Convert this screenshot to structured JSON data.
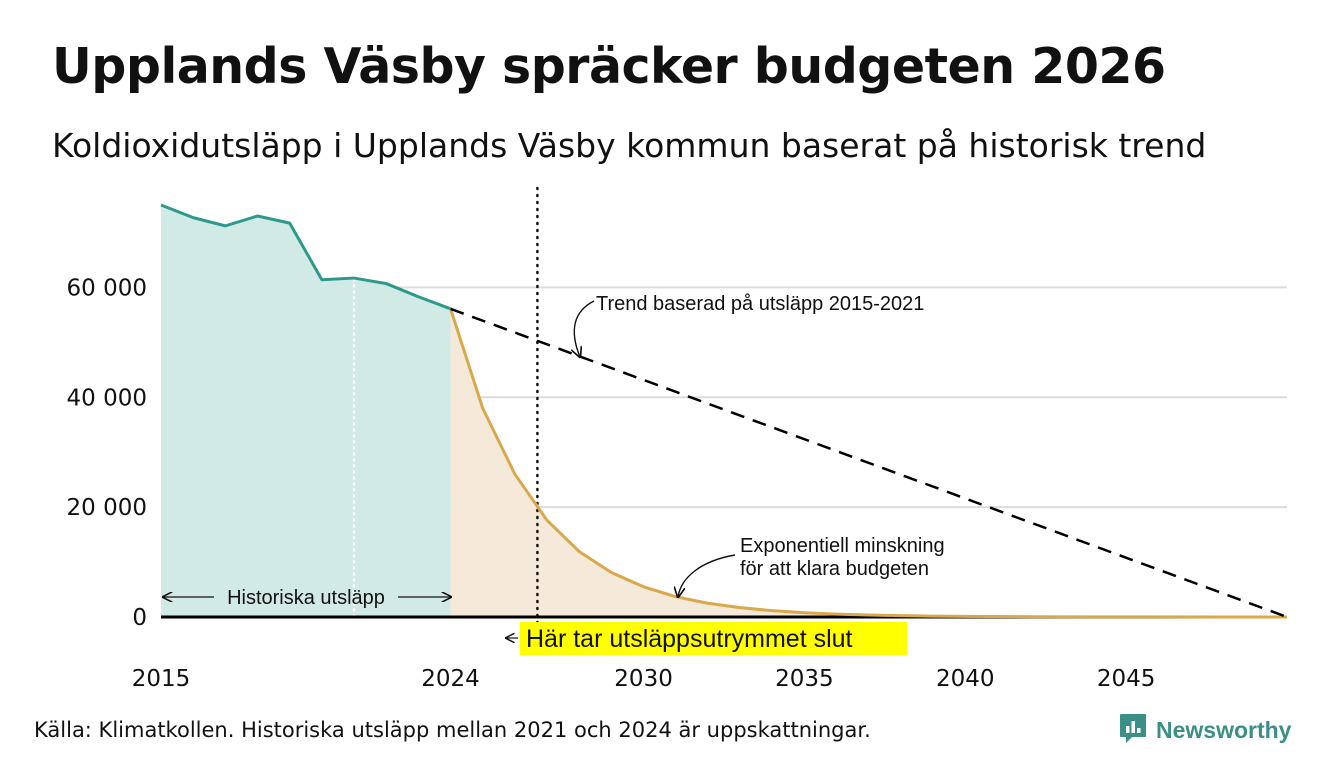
{
  "title": "Upplands Väsby spräcker budgeten 2026",
  "subtitle": "Koldioxidutsläpp i Upplands Väsby kommun baserat på historisk trend",
  "source": "Källa: Klimatkollen. Historiska utsläpp mellan 2021 och 2024 är uppskattningar.",
  "brand": {
    "name": "Newsworthy",
    "icon": "chart-logo-icon",
    "color": "#3a8f86"
  },
  "chart_data": {
    "type": "area",
    "xlim": [
      2015,
      2050
    ],
    "ylim": [
      0,
      75000
    ],
    "grid": true,
    "x_ticks": [
      {
        "value": 2015,
        "label": "2015"
      },
      {
        "value": 2024,
        "label": "2024"
      },
      {
        "value": 2030,
        "label": "2030"
      },
      {
        "value": 2035,
        "label": "2035"
      },
      {
        "value": 2040,
        "label": "2040"
      },
      {
        "value": 2045,
        "label": "2045"
      }
    ],
    "y_ticks": [
      {
        "value": 0,
        "label": "0"
      },
      {
        "value": 20000,
        "label": "20 000"
      },
      {
        "value": 40000,
        "label": "40 000"
      },
      {
        "value": 60000,
        "label": "60 000"
      }
    ],
    "series": [
      {
        "key": "historical",
        "color": "#2b9a8c",
        "fill": "#d2eae6",
        "x": [
          2015,
          2016,
          2017,
          2018,
          2019,
          2020,
          2021,
          2022,
          2023,
          2024
        ],
        "y": [
          75000,
          72700,
          71200,
          73000,
          71700,
          61400,
          61700,
          60700,
          58300,
          56100
        ]
      },
      {
        "key": "budget",
        "color": "#d9a84a",
        "fill": "#f5ead9",
        "x": [
          2024,
          2025,
          2026,
          2027,
          2028,
          2029,
          2030,
          2031,
          2032,
          2033,
          2034,
          2035,
          2036,
          2037,
          2038,
          2039,
          2040,
          2042,
          2044,
          2046,
          2048,
          2050
        ],
        "y": [
          56100,
          38000,
          26000,
          17600,
          11900,
          8100,
          5500,
          3700,
          2500,
          1700,
          1150,
          780,
          530,
          360,
          245,
          165,
          110,
          50,
          25,
          12,
          5,
          2
        ]
      },
      {
        "key": "trend",
        "color": "#000000",
        "style": "dashed",
        "x": [
          2024,
          2050
        ],
        "y": [
          56100,
          0
        ]
      }
    ],
    "markers": [
      {
        "key": "budget_end",
        "x": 2026.7,
        "style": "dotted",
        "label": "Här tar utsläppsutrymmet slut",
        "highlight": "#ffff00"
      },
      {
        "key": "estimate_start",
        "x": 2021,
        "style": "dotted-white"
      }
    ],
    "annotations": {
      "trend": "Trend baserad på utsläpp 2015-2021",
      "exp_line1": "Exponentiell minskning",
      "exp_line2": "för att klara budgeten",
      "historical": "Historiska utsläpp"
    }
  }
}
